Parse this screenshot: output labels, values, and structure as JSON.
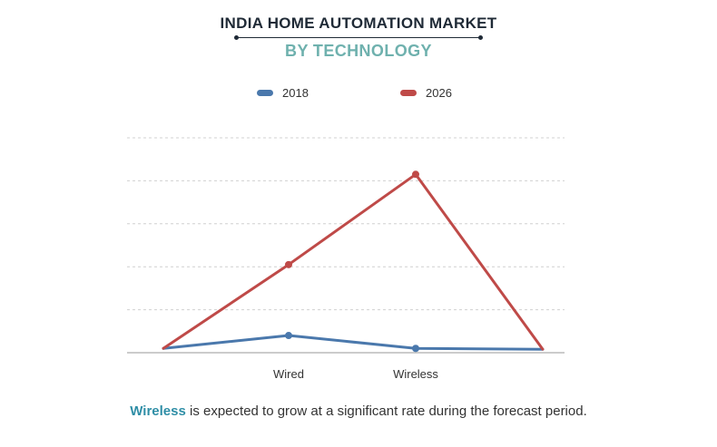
{
  "header": {
    "title": "INDIA HOME AUTOMATION MARKET",
    "subtitle": "BY TECHNOLOGY"
  },
  "colors": {
    "title": "#1f2a36",
    "subtitle": "#6fb1ae",
    "series_2018": "#4a78ac",
    "series_2026": "#bf4a48",
    "gridline": "#d0d0d0",
    "axis": "#9a9a9a",
    "highlight": "#2f8ea6"
  },
  "legend": {
    "items": [
      {
        "label": "2018"
      },
      {
        "label": "2026"
      }
    ]
  },
  "chart_data": {
    "type": "line",
    "categories": [
      "",
      "Wired",
      "Wireless",
      ""
    ],
    "series": [
      {
        "name": "2018",
        "values": [
          1,
          4,
          1,
          0.8
        ]
      },
      {
        "name": "2026",
        "values": [
          1,
          20.5,
          41.5,
          0.8
        ]
      }
    ],
    "xlabel": "",
    "ylabel": "",
    "ylim": [
      0,
      50
    ],
    "yticks": [
      0,
      10,
      20,
      30,
      40,
      50
    ],
    "ytick_labels_shown": false,
    "grid": true,
    "grid_style": "dashed",
    "legend_position": "top-center"
  },
  "caption": {
    "highlight": "Wireless",
    "rest": " is expected to grow at a significant rate during the forecast period."
  }
}
